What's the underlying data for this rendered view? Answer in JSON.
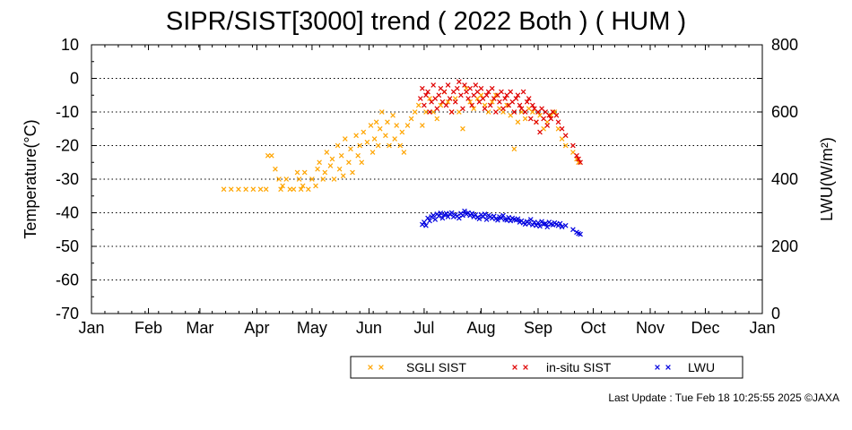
{
  "title": "SIPR/SIST[3000] trend ( 2022 Both ) ( HUM )",
  "footer": "Last Update : Tue Feb 18 10:25:55 2025 ©JAXA",
  "chart_data": {
    "type": "scatter",
    "title": "SIPR/SIST[3000] trend ( 2022 Both ) ( HUM )",
    "ylabel": "Temperature(°C)",
    "y2label": "LWU(W/m²)",
    "ylim": [
      -70,
      10
    ],
    "y2lim": [
      0,
      800
    ],
    "yticks": [
      10,
      0,
      -10,
      -20,
      -30,
      -40,
      -50,
      -60,
      -70
    ],
    "y2ticks": [
      800,
      600,
      400,
      200,
      0
    ],
    "xticks": [
      "Jan",
      "Feb",
      "Mar",
      "Apr",
      "May",
      "Jun",
      "Jul",
      "Aug",
      "Sep",
      "Oct",
      "Nov",
      "Dec",
      "Jan"
    ],
    "grid": "horizontal dotted",
    "legend_position": "bottom",
    "series": [
      {
        "name": "SGLI SIST",
        "color": "#ffa500",
        "axis": "left",
        "x": [
          72,
          76,
          80,
          84,
          88,
          92,
          95,
          96,
          98,
          100,
          102,
          103,
          104,
          106,
          108,
          110,
          112,
          113,
          114,
          115,
          116,
          118,
          120,
          122,
          123,
          124,
          126,
          127,
          128,
          130,
          131,
          132,
          134,
          135,
          136,
          137,
          138,
          140,
          141,
          142,
          144,
          145,
          146,
          147,
          148,
          150,
          152,
          153,
          154,
          155,
          156,
          157,
          158,
          160,
          161,
          162,
          164,
          165,
          166,
          168,
          169,
          170,
          172,
          174,
          176,
          178,
          180,
          182,
          184,
          186,
          188,
          190,
          192,
          194,
          196,
          198,
          200,
          202,
          204,
          206,
          208,
          210,
          212,
          214,
          216,
          218,
          220,
          222,
          224,
          226,
          228,
          230,
          232,
          234,
          236,
          238,
          240,
          242,
          244,
          246,
          248,
          250,
          252,
          254,
          256,
          258,
          262,
          264,
          265
        ],
        "y": [
          -33,
          -33,
          -33,
          -33,
          -33,
          -33,
          -33,
          -23,
          -23,
          -27,
          -30,
          -33,
          -32,
          -30,
          -33,
          -33,
          -28,
          -30,
          -33,
          -32,
          -28,
          -33,
          -30,
          -32,
          -27,
          -25,
          -30,
          -28,
          -22,
          -26,
          -24,
          -30,
          -20,
          -27,
          -23,
          -29,
          -18,
          -25,
          -21,
          -28,
          -17,
          -23,
          -20,
          -25,
          -16,
          -19,
          -14,
          -22,
          -18,
          -13,
          -20,
          -15,
          -10,
          -17,
          -13,
          -20,
          -11,
          -18,
          -14,
          -20,
          -16,
          -22,
          -14,
          -12,
          -10,
          -8,
          -14,
          -10,
          -6,
          -10,
          -12,
          -8,
          -4,
          -7,
          -10,
          -6,
          -10,
          -15,
          -3,
          -7,
          -9,
          -6,
          -5,
          -8,
          -10,
          -7,
          -5,
          -9,
          -10,
          -8,
          -11,
          -21,
          -13,
          -10,
          -12,
          -9,
          -10,
          -13,
          -11,
          -15,
          -13,
          -11,
          -10,
          -15,
          -18,
          -20,
          -22,
          -24,
          -25
        ]
      },
      {
        "name": "in-situ SIST",
        "color": "#e00000",
        "axis": "left",
        "x": [
          179,
          180,
          181,
          182,
          183,
          184,
          185,
          186,
          187,
          188,
          189,
          190,
          191,
          192,
          193,
          194,
          195,
          196,
          197,
          198,
          199,
          200,
          201,
          202,
          203,
          204,
          205,
          206,
          207,
          208,
          209,
          210,
          211,
          212,
          213,
          214,
          215,
          216,
          217,
          218,
          219,
          220,
          221,
          222,
          223,
          224,
          225,
          226,
          227,
          228,
          229,
          230,
          231,
          232,
          233,
          234,
          235,
          236,
          237,
          238,
          239,
          240,
          241,
          242,
          243,
          244,
          245,
          246,
          247,
          248,
          249,
          250,
          251,
          253,
          254,
          256,
          258,
          262,
          264,
          265,
          266
        ],
        "y": [
          -6,
          -3,
          -8,
          -5,
          -4,
          -10,
          -7,
          -2,
          -6,
          -9,
          -5,
          -3,
          -7,
          -4,
          -8,
          -2,
          -6,
          -10,
          -4,
          -7,
          -3,
          -1,
          -5,
          -9,
          -2,
          -4,
          -6,
          -3,
          -8,
          -5,
          -2,
          -4,
          -7,
          -3,
          -6,
          -9,
          -5,
          -4,
          -8,
          -3,
          -6,
          -10,
          -5,
          -7,
          -4,
          -9,
          -6,
          -5,
          -8,
          -4,
          -7,
          -10,
          -6,
          -5,
          -8,
          -9,
          -4,
          -10,
          -7,
          -6,
          -12,
          -8,
          -9,
          -13,
          -10,
          -16,
          -9,
          -12,
          -10,
          -14,
          -11,
          -12,
          -10,
          -11,
          -13,
          -15,
          -17,
          -20,
          -23,
          -24,
          -25
        ]
      },
      {
        "name": "LWU",
        "color": "#0000e0",
        "axis": "right",
        "x": [
          180,
          181,
          182,
          183,
          184,
          185,
          186,
          187,
          188,
          189,
          190,
          191,
          192,
          193,
          194,
          195,
          196,
          197,
          198,
          199,
          200,
          201,
          202,
          203,
          204,
          205,
          206,
          207,
          208,
          209,
          210,
          211,
          212,
          213,
          214,
          215,
          216,
          217,
          218,
          219,
          220,
          221,
          222,
          223,
          224,
          225,
          226,
          227,
          228,
          229,
          230,
          231,
          232,
          233,
          234,
          235,
          236,
          237,
          238,
          239,
          240,
          241,
          242,
          243,
          244,
          245,
          246,
          247,
          248,
          249,
          250,
          251,
          252,
          253,
          254,
          255,
          256,
          258,
          262,
          264,
          265,
          266
        ],
        "y": [
          265,
          272,
          262,
          284,
          276,
          288,
          292,
          280,
          296,
          290,
          299,
          284,
          294,
          298,
          288,
          296,
          300,
          288,
          294,
          290,
          284,
          298,
          292,
          305,
          296,
          300,
          292,
          298,
          288,
          294,
          286,
          282,
          294,
          288,
          296,
          280,
          292,
          288,
          284,
          290,
          282,
          278,
          288,
          284,
          292,
          280,
          278,
          286,
          276,
          284,
          280,
          278,
          282,
          272,
          276,
          270,
          266,
          274,
          268,
          280,
          264,
          272,
          262,
          270,
          260,
          274,
          266,
          268,
          258,
          272,
          266,
          264,
          270,
          266,
          262,
          268,
          258,
          262,
          250,
          242,
          238,
          236
        ]
      }
    ]
  }
}
